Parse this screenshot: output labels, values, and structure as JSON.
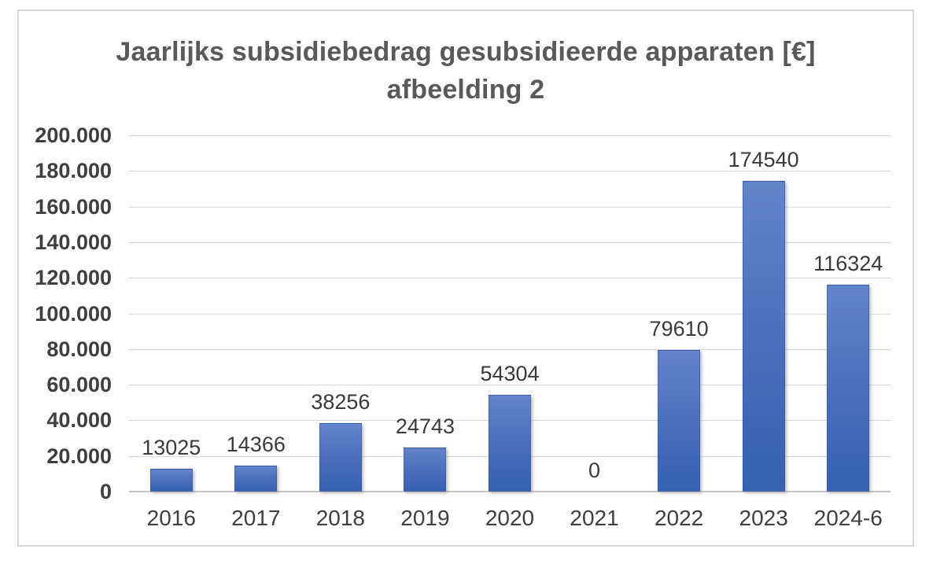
{
  "title": {
    "line1": "Jaarlijks subsidiebedrag gesubsidieerde apparaten [€]",
    "line2": "afbeelding 2"
  },
  "chart_data": {
    "type": "bar",
    "title": "Jaarlijks subsidiebedrag gesubsidieerde apparaten [€] afbeelding 2",
    "categories": [
      "2016",
      "2017",
      "2018",
      "2019",
      "2020",
      "2021",
      "2022",
      "2023",
      "2024-6"
    ],
    "values": [
      13025,
      14366,
      38256,
      24743,
      54304,
      0,
      79610,
      174540,
      116324
    ],
    "data_labels": [
      "13025",
      "14366",
      "38256",
      "24743",
      "54304",
      "0",
      "79610",
      "174540",
      "116324"
    ],
    "xlabel": "",
    "ylabel": "",
    "ylim": [
      0,
      200000
    ],
    "ytick_interval": 20000,
    "ytick_labels": [
      "0",
      "20.000",
      "40.000",
      "60.000",
      "80.000",
      "100.000",
      "120.000",
      "140.000",
      "160.000",
      "180.000",
      "200.000"
    ],
    "grid": true,
    "legend": "none",
    "colors": {
      "bar_gradient_top": "#6384cb",
      "bar_gradient_bottom": "#3661b1",
      "gridline": "#d9d9d9",
      "axis_line": "#c6c6c6",
      "title_text": "#595959",
      "axis_text": "#3f3f3f",
      "label_text": "#3a3a3a",
      "frame_border": "#d9d9d9"
    }
  }
}
